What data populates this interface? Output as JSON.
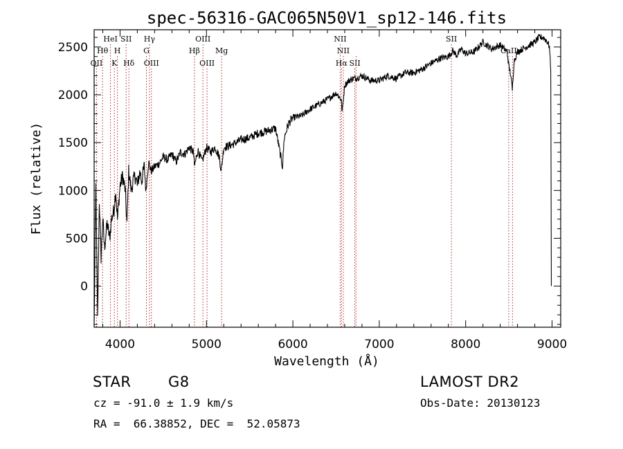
{
  "chart_data": {
    "type": "line",
    "title": "spec-56316-GAC065N50V1_sp12-146.fits",
    "xlabel": "Wavelength (Å)",
    "ylabel": "Flux (relative)",
    "xlim": [
      3700,
      9100
    ],
    "ylim": [
      -430,
      2680
    ],
    "xticks": [
      4000,
      5000,
      6000,
      7000,
      8000,
      9000
    ],
    "yticks": [
      0,
      500,
      1000,
      1500,
      2000,
      2500
    ],
    "grid": false,
    "series": [
      {
        "color": "#000000",
        "points": [
          [
            3700,
            -400
          ],
          [
            3720,
            1050
          ],
          [
            3740,
            -350
          ],
          [
            3760,
            900
          ],
          [
            3780,
            300
          ],
          [
            3800,
            700
          ],
          [
            3820,
            400
          ],
          [
            3850,
            650
          ],
          [
            3880,
            500
          ],
          [
            3900,
            700
          ],
          [
            3930,
            800
          ],
          [
            3950,
            1000
          ],
          [
            3970,
            700
          ],
          [
            4000,
            1050
          ],
          [
            4030,
            1150
          ],
          [
            4060,
            1000
          ],
          [
            4080,
            650
          ],
          [
            4100,
            1200
          ],
          [
            4130,
            1000
          ],
          [
            4150,
            1100
          ],
          [
            4180,
            1150
          ],
          [
            4200,
            1050
          ],
          [
            4230,
            1200
          ],
          [
            4250,
            1100
          ],
          [
            4280,
            1250
          ],
          [
            4300,
            1000
          ],
          [
            4330,
            1300
          ],
          [
            4360,
            1200
          ],
          [
            4400,
            1250
          ],
          [
            4450,
            1280
          ],
          [
            4500,
            1350
          ],
          [
            4550,
            1320
          ],
          [
            4600,
            1380
          ],
          [
            4650,
            1300
          ],
          [
            4700,
            1400
          ],
          [
            4750,
            1380
          ],
          [
            4800,
            1450
          ],
          [
            4850,
            1400
          ],
          [
            4860,
            1250
          ],
          [
            4900,
            1420
          ],
          [
            4950,
            1300
          ],
          [
            5000,
            1450
          ],
          [
            5050,
            1400
          ],
          [
            5100,
            1450
          ],
          [
            5150,
            1350
          ],
          [
            5170,
            1200
          ],
          [
            5200,
            1450
          ],
          [
            5300,
            1480
          ],
          [
            5400,
            1530
          ],
          [
            5500,
            1550
          ],
          [
            5600,
            1600
          ],
          [
            5700,
            1620
          ],
          [
            5800,
            1650
          ],
          [
            5850,
            1400
          ],
          [
            5880,
            1250
          ],
          [
            5900,
            1550
          ],
          [
            5950,
            1700
          ],
          [
            6000,
            1760
          ],
          [
            6100,
            1780
          ],
          [
            6200,
            1850
          ],
          [
            6300,
            1900
          ],
          [
            6400,
            1950
          ],
          [
            6500,
            2020
          ],
          [
            6560,
            1950
          ],
          [
            6570,
            1820
          ],
          [
            6600,
            2100
          ],
          [
            6650,
            2150
          ],
          [
            6700,
            2170
          ],
          [
            6750,
            2180
          ],
          [
            6800,
            2200
          ],
          [
            6900,
            2150
          ],
          [
            7000,
            2150
          ],
          [
            7100,
            2200
          ],
          [
            7200,
            2170
          ],
          [
            7300,
            2230
          ],
          [
            7400,
            2230
          ],
          [
            7500,
            2270
          ],
          [
            7600,
            2330
          ],
          [
            7700,
            2380
          ],
          [
            7800,
            2400
          ],
          [
            7850,
            2460
          ],
          [
            7900,
            2410
          ],
          [
            7950,
            2480
          ],
          [
            8000,
            2430
          ],
          [
            8100,
            2450
          ],
          [
            8200,
            2550
          ],
          [
            8300,
            2480
          ],
          [
            8400,
            2520
          ],
          [
            8480,
            2450
          ],
          [
            8500,
            2300
          ],
          [
            8520,
            2220
          ],
          [
            8540,
            2050
          ],
          [
            8560,
            2350
          ],
          [
            8600,
            2450
          ],
          [
            8700,
            2500
          ],
          [
            8800,
            2550
          ],
          [
            8850,
            2600
          ],
          [
            8900,
            2600
          ],
          [
            8950,
            2550
          ],
          [
            8970,
            2500
          ],
          [
            8985,
            2250
          ],
          [
            8990,
            500
          ],
          [
            8992,
            0
          ]
        ]
      }
    ],
    "annotations": {
      "lines": [
        {
          "name": "OII",
          "wavelength": 3727,
          "row": 3
        },
        {
          "name": "Hθ",
          "wavelength": 3797,
          "row": 1
        },
        {
          "name": "HeI",
          "wavelength": 3889,
          "row": 0
        },
        {
          "name": "K",
          "wavelength": 3934,
          "row": 2
        },
        {
          "name": "H",
          "wavelength": 3969,
          "row": 1
        },
        {
          "name": "SII",
          "wavelength": 4070,
          "row": 0
        },
        {
          "name": "Hδ",
          "wavelength": 4102,
          "row": 2
        },
        {
          "name": "Hγ",
          "wavelength": 4340,
          "row": 0
        },
        {
          "name": "G",
          "wavelength": 4305,
          "row": 1
        },
        {
          "name": "OIII",
          "wavelength": 4363,
          "row": 2
        },
        {
          "name": "Hβ",
          "wavelength": 4861,
          "row": 1
        },
        {
          "name": "OIII",
          "wavelength": 4959,
          "row": 0
        },
        {
          "name": "OIII",
          "wavelength": 5007,
          "row": 2
        },
        {
          "name": "Mg",
          "wavelength": 5175,
          "row": 1
        },
        {
          "name": "NII",
          "wavelength": 6548,
          "row": 0
        },
        {
          "name": "NII",
          "wavelength": 6584,
          "row": 1
        },
        {
          "name": "Hα",
          "wavelength": 6563,
          "row": 2
        },
        {
          "name": "SII",
          "wavelength": 6717,
          "row": 2
        },
        {
          "name": "SII",
          "wavelength": 6731,
          "row": -1
        },
        {
          "name": "SII",
          "wavelength": 7835,
          "row": 0
        },
        {
          "name": "CaII",
          "wavelength": 8498,
          "row": 1
        },
        {
          "name": "CaII",
          "wavelength": 8542,
          "row": -1
        }
      ],
      "color": "#b22222"
    }
  },
  "info": {
    "class_label": "STAR",
    "subclass": "G8",
    "survey": "LAMOST DR2",
    "redshift": "cz = -91.0 ± 1.9 km/s",
    "obs_date": "Obs-Date: 20130123",
    "coords": "RA =  66.38852, DEC =  52.05873"
  }
}
